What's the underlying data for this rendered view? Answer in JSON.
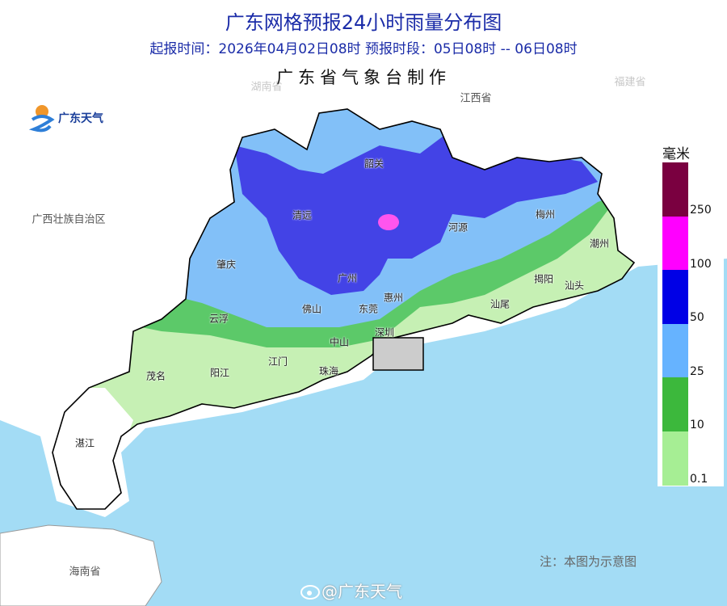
{
  "header": {
    "title": "广东网格预报24小时雨量分布图",
    "subtitle": "起报时间：2026年04月02日08时   预报时段：05日08时 -- 06日08时",
    "producer": "广东省气象台制作"
  },
  "logo": {
    "text": "广东天气"
  },
  "regions": {
    "guangxi": "广西壮族自治区",
    "jiangxi": "江西省",
    "hunan": "湖南省",
    "fujian": "福建省",
    "hainan": "海南省"
  },
  "cities": {
    "shaoguan": "韶关",
    "qingyuan": "清远",
    "zhaoqing": "肇庆",
    "guangzhou": "广州",
    "heyuan": "河源",
    "meizhou": "梅州",
    "chaozhou": "潮州",
    "jieyang": "揭阳",
    "shantou": "汕头",
    "shanwei": "汕尾",
    "huizhou": "惠州",
    "dongguan": "东莞",
    "shenzhen": "深圳",
    "foshan": "佛山",
    "yunfu": "云浮",
    "zhongshan": "中山",
    "jiangmen": "江门",
    "yangjiang": "阳江",
    "maoming": "茂名",
    "zhuhai": "珠海",
    "zhanjiang": "湛江"
  },
  "legend": {
    "unit": "毫米",
    "ticks": [
      "250",
      "100",
      "50",
      "25",
      "10",
      "0.1"
    ],
    "colors": [
      "#7a0040",
      "#ff00ff",
      "#0000e6",
      "#66b3ff",
      "#3cb83c",
      "#a6ee94"
    ]
  },
  "note": "注：本图为示意图",
  "watermark": "@广东天气"
}
